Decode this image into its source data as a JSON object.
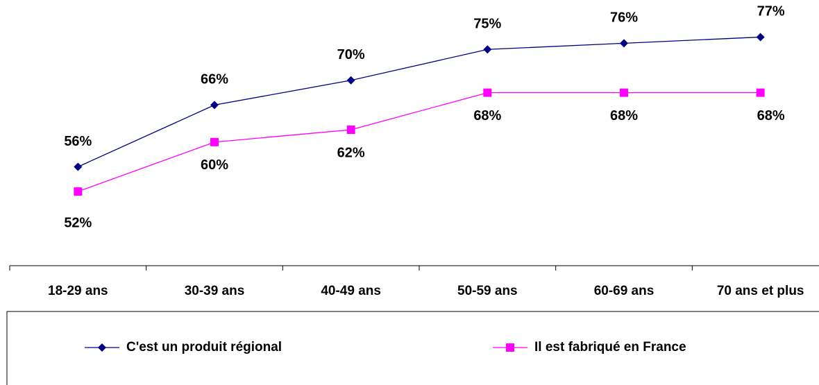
{
  "chart_data": {
    "type": "line",
    "categories": [
      "18-29 ans",
      "30-39 ans",
      "40-49 ans",
      "50-59 ans",
      "60-69 ans",
      "70 ans et plus"
    ],
    "series": [
      {
        "name": "C'est un produit régional",
        "color": "#000080",
        "marker": "diamond",
        "values": [
          56,
          66,
          70,
          75,
          76,
          77
        ],
        "value_labels": [
          "56%",
          "66%",
          "70%",
          "75%",
          "76%",
          "77%"
        ]
      },
      {
        "name": "Il est fabriqué en France",
        "color": "#ff00ff",
        "marker": "square",
        "values": [
          52,
          60,
          62,
          68,
          68,
          68
        ],
        "value_labels": [
          "52%",
          "60%",
          "62%",
          "68%",
          "68%",
          "68%"
        ]
      }
    ],
    "ylim": [
      40,
      83
    ],
    "legend": "bottom"
  }
}
